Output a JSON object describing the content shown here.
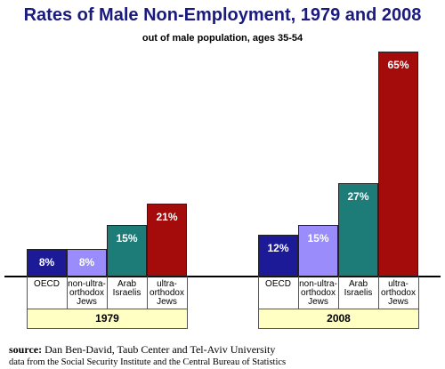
{
  "chart_data": {
    "type": "grouped-bar",
    "title": "Rates of Male Non-Employment, 1979 and 2008",
    "subtitle": "out of male population, ages 35-54",
    "categories": [
      "OECD",
      "non-ultra-orthodox Jews",
      "Arab Israelis",
      "ultra-orthodox Jews"
    ],
    "colors": [
      "#1c1a96",
      "#9a8cfa",
      "#1d7b78",
      "#a40b0b"
    ],
    "series": [
      {
        "name": "1979",
        "values": [
          8,
          8,
          15,
          21
        ],
        "value_labels": [
          "8%",
          "8%",
          "15%",
          "21%"
        ]
      },
      {
        "name": "2008",
        "values": [
          12,
          15,
          27,
          65
        ],
        "value_labels": [
          "12%",
          "15%",
          "27%",
          "65%"
        ]
      }
    ],
    "source_label": "source:",
    "source": "Dan Ben-David, Taub Center and Tel-Aviv University",
    "note": "data from the Social Security Institute and the Central Bureau of Statistics"
  }
}
